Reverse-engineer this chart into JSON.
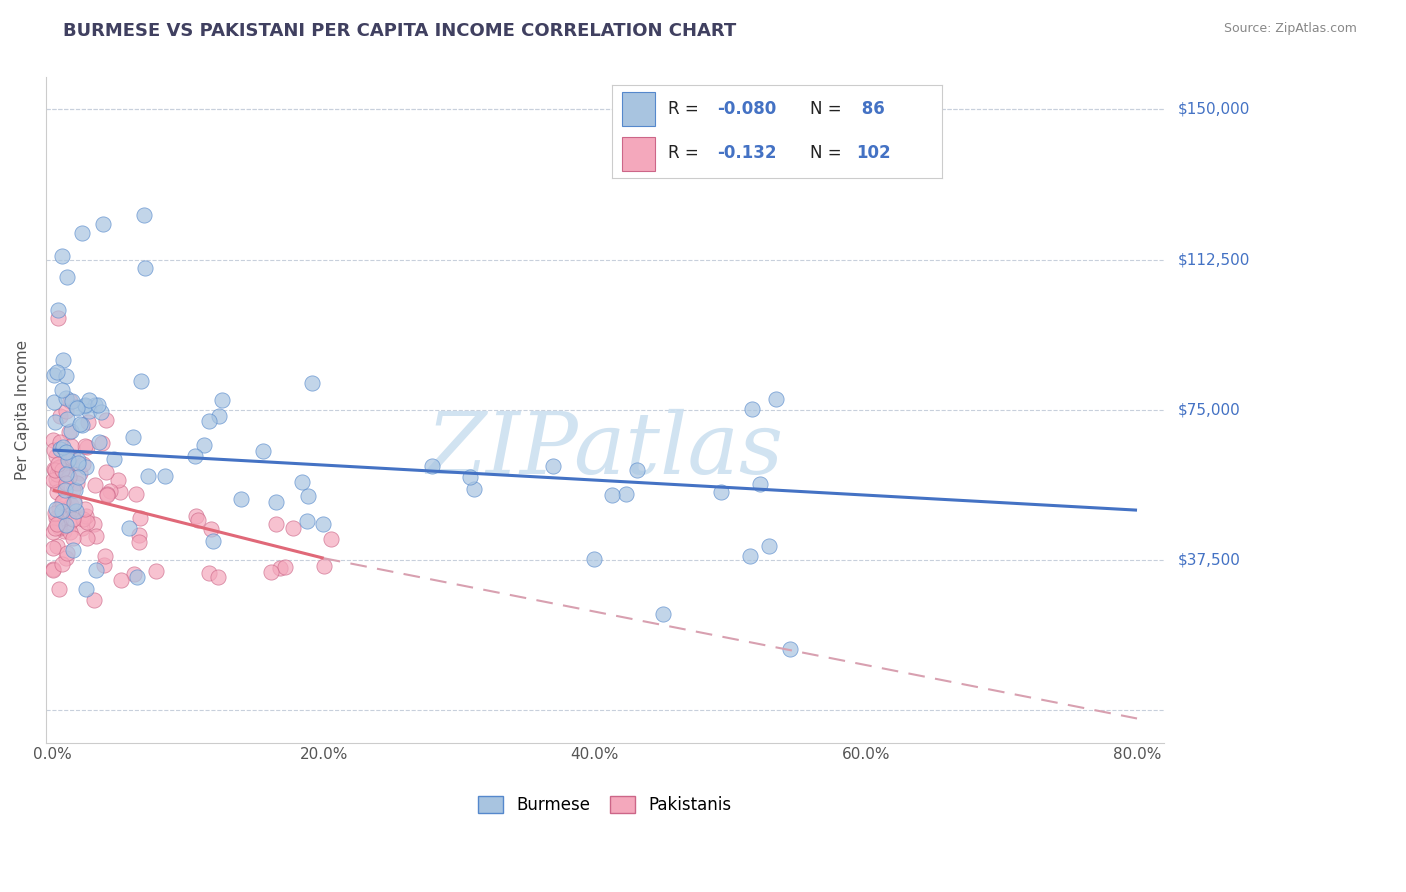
{
  "title": "BURMESE VS PAKISTANI PER CAPITA INCOME CORRELATION CHART",
  "source": "Source: ZipAtlas.com",
  "ylabel": "Per Capita Income",
  "ytick_vals": [
    0,
    37500,
    75000,
    112500,
    150000
  ],
  "ytick_right_labels": [
    "",
    "$37,500",
    "$75,000",
    "$112,500",
    "$150,000"
  ],
  "ylim": [
    -8000,
    158000
  ],
  "xlim": [
    -0.5,
    82
  ],
  "xtick_vals": [
    0,
    20,
    40,
    60,
    80
  ],
  "xtick_labels": [
    "0.0%",
    "20.0%",
    "40.0%",
    "60.0%",
    "80.0%"
  ],
  "burmese_scatter_color": "#a8c4e0",
  "burmese_edge_color": "#5588cc",
  "pakistani_scatter_color": "#f4a8bc",
  "pakistani_edge_color": "#cc6688",
  "burmese_line_color": "#4472c4",
  "pakistani_line_color": "#e06878",
  "pakistani_dash_color": "#d8a0b0",
  "watermark_color": "#cce0f0",
  "grid_color": "#c8d0dc",
  "title_color": "#404060",
  "source_color": "#888888",
  "axis_label_color": "#555555",
  "tick_color": "#555555",
  "right_label_color": "#4472c4",
  "bottom_legend_burmese": "Burmese",
  "bottom_legend_pakistani": "Pakistanis",
  "R_burmese": -0.08,
  "N_burmese": 86,
  "R_pakistani": -0.132,
  "N_pakistani": 102,
  "bur_line_x0": 0,
  "bur_line_x1": 80,
  "bur_line_y0": 65000,
  "bur_line_y1": 50000,
  "pak_solid_x0": 0,
  "pak_solid_x1": 20,
  "pak_solid_y0": 55000,
  "pak_solid_y1": 38000,
  "pak_dash_x0": 20,
  "pak_dash_x1": 80,
  "pak_dash_y0": 38000,
  "pak_dash_y1": -2000
}
